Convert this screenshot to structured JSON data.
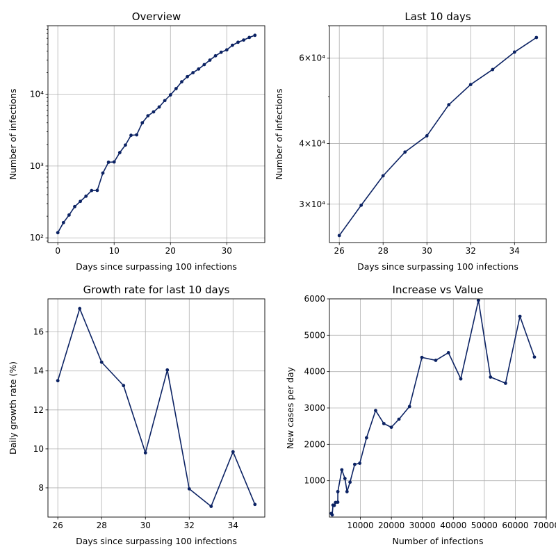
{
  "colors": {
    "line": "#0b2263",
    "grid": "#b0b0b0",
    "axis": "#000000"
  },
  "chart_data": [
    {
      "type": "line",
      "title": "Overview",
      "xlabel": "Days since surpassing 100 infections",
      "ylabel": "Number of infections",
      "yscale": "log",
      "grid": true,
      "xlim": [
        -1.75,
        36.75
      ],
      "ylim": [
        86,
        90000
      ],
      "xticks": [
        0,
        10,
        20,
        30
      ],
      "xtick_labels": [
        "0",
        "10",
        "20",
        "30"
      ],
      "yticks": [
        100,
        1000,
        10000
      ],
      "ytick_labels": [
        "10²",
        "10³",
        "10⁴"
      ],
      "x": [
        0,
        1,
        2,
        3,
        4,
        5,
        6,
        7,
        8,
        9,
        10,
        11,
        12,
        13,
        14,
        15,
        16,
        17,
        18,
        19,
        20,
        21,
        22,
        23,
        24,
        25,
        26,
        27,
        28,
        29,
        30,
        31,
        32,
        33,
        34,
        35
      ],
      "values": [
        118,
        163,
        208,
        272,
        322,
        380,
        456,
        458,
        799,
        1130,
        1140,
        1540,
        1960,
        2680,
        2720,
        4000,
        5010,
        5680,
        6650,
        8160,
        9790,
        11980,
        14910,
        17570,
        19980,
        22440,
        25850,
        29850,
        34320,
        38420,
        41500,
        48100,
        52950,
        56850,
        61760,
        66180
      ]
    },
    {
      "type": "line",
      "title": "Last 10 days",
      "xlabel": "Days since surpassing 100 infections",
      "ylabel": "Number of infections",
      "yscale": "log",
      "grid": true,
      "xlim": [
        25.55,
        35.45
      ],
      "ylim": [
        25000,
        70000
      ],
      "xticks": [
        26,
        28,
        30,
        32,
        34
      ],
      "xtick_labels": [
        "26",
        "28",
        "30",
        "32",
        "34"
      ],
      "yticks": [
        30000,
        40000,
        60000
      ],
      "ytick_labels": [
        "3×10⁴",
        "4×10⁴",
        "6×10⁴"
      ],
      "x": [
        26,
        27,
        28,
        29,
        30,
        31,
        32,
        33,
        34,
        35
      ],
      "values": [
        25850,
        29850,
        34320,
        38420,
        41500,
        48100,
        52950,
        56850,
        61760,
        66180
      ]
    },
    {
      "type": "line",
      "title": "Growth rate for last 10 days",
      "xlabel": "Days since surpassing 100 infections",
      "ylabel": "Daily growth rate (%)",
      "grid": true,
      "xlim": [
        25.55,
        35.45
      ],
      "ylim": [
        6.5,
        17.7
      ],
      "xticks": [
        26,
        28,
        30,
        32,
        34
      ],
      "xtick_labels": [
        "26",
        "28",
        "30",
        "32",
        "34"
      ],
      "yticks": [
        8,
        10,
        12,
        14,
        16
      ],
      "ytick_labels": [
        "8",
        "10",
        "12",
        "14",
        "16"
      ],
      "x": [
        26,
        27,
        28,
        29,
        30,
        31,
        32,
        33,
        34,
        35
      ],
      "values": [
        13.5,
        17.2,
        14.45,
        13.25,
        9.8,
        14.05,
        7.95,
        7.05,
        9.85,
        7.15
      ]
    },
    {
      "type": "line",
      "title": "Increase vs Value",
      "xlabel": "Number of infections",
      "ylabel": "New cases per day",
      "grid": true,
      "xlim": [
        0,
        70000
      ],
      "ylim": [
        0,
        6000
      ],
      "xticks": [
        10000,
        20000,
        30000,
        40000,
        50000,
        60000,
        70000
      ],
      "xtick_labels": [
        "10000",
        "20000",
        "30000",
        "40000",
        "50000",
        "60000",
        "70000"
      ],
      "yticks": [
        1000,
        2000,
        3000,
        4000,
        5000,
        6000
      ],
      "ytick_labels": [
        "1000",
        "2000",
        "3000",
        "4000",
        "5000",
        "6000"
      ],
      "x": [
        600,
        900,
        1150,
        1550,
        1960,
        2700,
        2720,
        4000,
        5010,
        5680,
        6650,
        8160,
        9790,
        11980,
        14910,
        17570,
        19980,
        22440,
        25850,
        29850,
        34320,
        38420,
        42400,
        48100,
        52000,
        56850,
        61500,
        66180
      ],
      "values": [
        100,
        60,
        330,
        320,
        400,
        410,
        700,
        1300,
        1060,
        700,
        960,
        1450,
        1480,
        2180,
        2930,
        2570,
        2470,
        2690,
        3040,
        4390,
        4310,
        4520,
        3800,
        5960,
        3850,
        3680,
        5520,
        4400
      ]
    }
  ]
}
